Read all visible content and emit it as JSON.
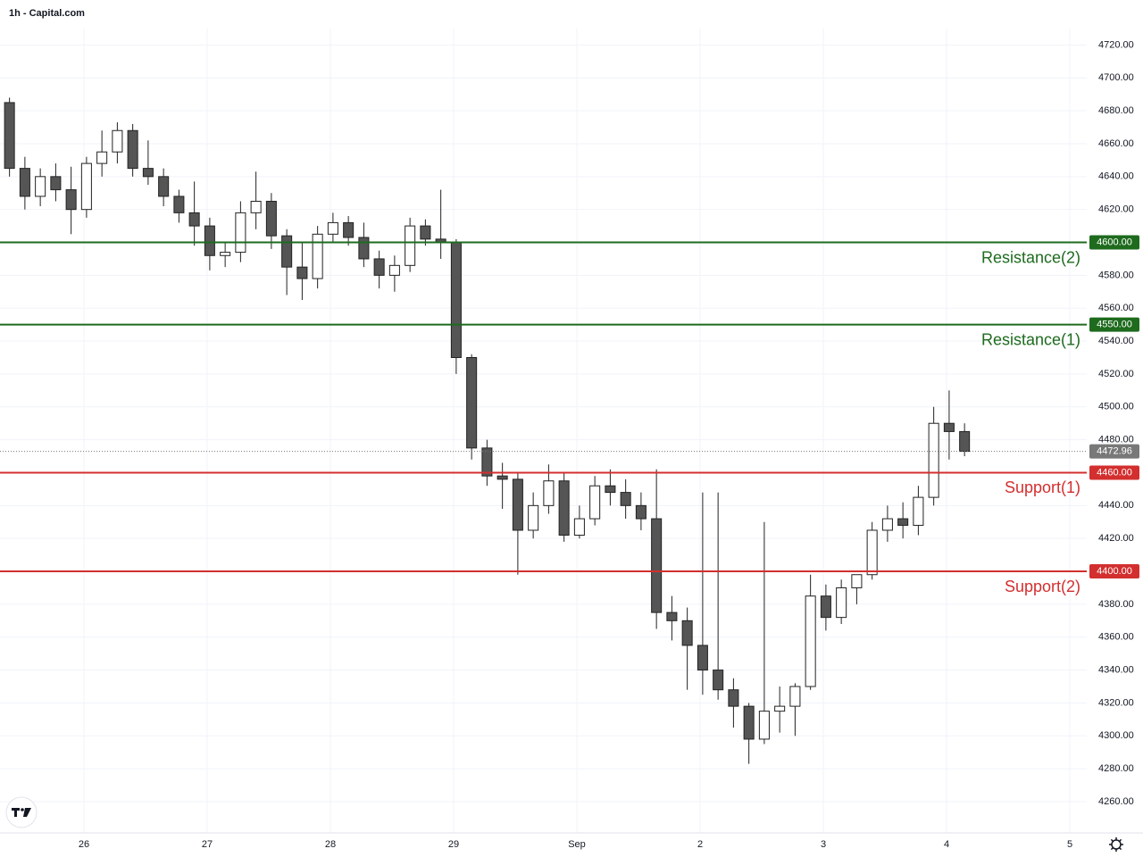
{
  "chart_data": {
    "type": "candlestick",
    "title": "1h - Capital.com",
    "xlim": [
      -0.35,
      211.3
    ],
    "ylim": [
      4241,
      4730
    ],
    "grid": true,
    "up_color": "#ffffff",
    "down_color": "#555555",
    "wick_color": "#222222",
    "xticks": [
      {
        "value": 16,
        "label": "26"
      },
      {
        "value": 40,
        "label": "27"
      },
      {
        "value": 64,
        "label": "28"
      },
      {
        "value": 88,
        "label": "29"
      },
      {
        "value": 112,
        "label": "Sep"
      },
      {
        "value": 136,
        "label": "2"
      },
      {
        "value": 160,
        "label": "3"
      },
      {
        "value": 184,
        "label": "4"
      },
      {
        "value": 208,
        "label": "5"
      }
    ],
    "yticks": [
      {
        "value": 4260,
        "label": "4260.00"
      },
      {
        "value": 4280,
        "label": "4280.00"
      },
      {
        "value": 4300,
        "label": "4300.00"
      },
      {
        "value": 4320,
        "label": "4320.00"
      },
      {
        "value": 4340,
        "label": "4340.00"
      },
      {
        "value": 4360,
        "label": "4360.00"
      },
      {
        "value": 4380,
        "label": "4380.00"
      },
      {
        "value": 4420,
        "label": "4420.00"
      },
      {
        "value": 4440,
        "label": "4440.00"
      },
      {
        "value": 4480,
        "label": "4480.00"
      },
      {
        "value": 4500,
        "label": "4500.00"
      },
      {
        "value": 4520,
        "label": "4520.00"
      },
      {
        "value": 4540,
        "label": "4540.00"
      },
      {
        "value": 4560,
        "label": "4560.00"
      },
      {
        "value": 4580,
        "label": "4580.00"
      },
      {
        "value": 4620,
        "label": "4620.00"
      },
      {
        "value": 4640,
        "label": "4640.00"
      },
      {
        "value": 4660,
        "label": "4660.00"
      },
      {
        "value": 4680,
        "label": "4680.00"
      },
      {
        "value": 4700,
        "label": "4700.00"
      },
      {
        "value": 4720,
        "label": "4720.00"
      }
    ],
    "levels": [
      {
        "name": "Resistance(2)",
        "value": 4600,
        "label": "4600.00",
        "color": "#1e6b1e"
      },
      {
        "name": "Resistance(1)",
        "value": 4550,
        "label": "4550.00",
        "color": "#1e6b1e"
      },
      {
        "name": "Support(1)",
        "value": 4460,
        "label": "4460.00",
        "color": "#d32f2f"
      },
      {
        "name": "Support(2)",
        "value": 4400,
        "label": "4400.00",
        "color": "#d32f2f"
      }
    ],
    "last_price": {
      "value": 4472.96,
      "label": "4472.96",
      "color": "#787878"
    },
    "candles": [
      {
        "x": 1.5,
        "o": 4685,
        "h": 4688,
        "l": 4640,
        "c": 4645
      },
      {
        "x": 4.5,
        "o": 4645,
        "h": 4652,
        "l": 4620,
        "c": 4628
      },
      {
        "x": 7.5,
        "o": 4628,
        "h": 4645,
        "l": 4622,
        "c": 4640
      },
      {
        "x": 10.5,
        "o": 4640,
        "h": 4648,
        "l": 4625,
        "c": 4632
      },
      {
        "x": 13.5,
        "o": 4632,
        "h": 4646,
        "l": 4605,
        "c": 4620
      },
      {
        "x": 16.5,
        "o": 4620,
        "h": 4652,
        "l": 4615,
        "c": 4648
      },
      {
        "x": 19.5,
        "o": 4648,
        "h": 4668,
        "l": 4640,
        "c": 4655
      },
      {
        "x": 22.5,
        "o": 4655,
        "h": 4673,
        "l": 4648,
        "c": 4668
      },
      {
        "x": 25.5,
        "o": 4668,
        "h": 4672,
        "l": 4640,
        "c": 4645
      },
      {
        "x": 28.5,
        "o": 4645,
        "h": 4662,
        "l": 4635,
        "c": 4640
      },
      {
        "x": 31.5,
        "o": 4640,
        "h": 4645,
        "l": 4622,
        "c": 4628
      },
      {
        "x": 34.5,
        "o": 4628,
        "h": 4632,
        "l": 4612,
        "c": 4618
      },
      {
        "x": 37.5,
        "o": 4618,
        "h": 4637,
        "l": 4598,
        "c": 4610
      },
      {
        "x": 40.5,
        "o": 4610,
        "h": 4615,
        "l": 4583,
        "c": 4592
      },
      {
        "x": 43.5,
        "o": 4592,
        "h": 4600,
        "l": 4585,
        "c": 4594
      },
      {
        "x": 46.5,
        "o": 4594,
        "h": 4625,
        "l": 4588,
        "c": 4618
      },
      {
        "x": 49.5,
        "o": 4618,
        "h": 4643,
        "l": 4608,
        "c": 4625
      },
      {
        "x": 52.5,
        "o": 4625,
        "h": 4630,
        "l": 4596,
        "c": 4604
      },
      {
        "x": 55.5,
        "o": 4604,
        "h": 4608,
        "l": 4568,
        "c": 4585
      },
      {
        "x": 58.5,
        "o": 4585,
        "h": 4600,
        "l": 4565,
        "c": 4578
      },
      {
        "x": 61.5,
        "o": 4578,
        "h": 4610,
        "l": 4572,
        "c": 4605
      },
      {
        "x": 64.5,
        "o": 4605,
        "h": 4618,
        "l": 4600,
        "c": 4612
      },
      {
        "x": 67.5,
        "o": 4612,
        "h": 4616,
        "l": 4598,
        "c": 4603
      },
      {
        "x": 70.5,
        "o": 4603,
        "h": 4612,
        "l": 4585,
        "c": 4590
      },
      {
        "x": 73.5,
        "o": 4590,
        "h": 4595,
        "l": 4572,
        "c": 4580
      },
      {
        "x": 76.5,
        "o": 4580,
        "h": 4592,
        "l": 4570,
        "c": 4586
      },
      {
        "x": 79.5,
        "o": 4586,
        "h": 4615,
        "l": 4582,
        "c": 4610
      },
      {
        "x": 82.5,
        "o": 4610,
        "h": 4614,
        "l": 4598,
        "c": 4602
      },
      {
        "x": 85.5,
        "o": 4602,
        "h": 4632,
        "l": 4590,
        "c": 4600
      },
      {
        "x": 88.5,
        "o": 4600,
        "h": 4602,
        "l": 4520,
        "c": 4530
      },
      {
        "x": 91.5,
        "o": 4530,
        "h": 4532,
        "l": 4468,
        "c": 4475
      },
      {
        "x": 94.5,
        "o": 4475,
        "h": 4480,
        "l": 4452,
        "c": 4458
      },
      {
        "x": 97.5,
        "o": 4458,
        "h": 4466,
        "l": 4438,
        "c": 4456
      },
      {
        "x": 100.5,
        "o": 4456,
        "h": 4460,
        "l": 4398,
        "c": 4425
      },
      {
        "x": 103.5,
        "o": 4425,
        "h": 4448,
        "l": 4420,
        "c": 4440
      },
      {
        "x": 106.5,
        "o": 4440,
        "h": 4465,
        "l": 4435,
        "c": 4455
      },
      {
        "x": 109.5,
        "o": 4455,
        "h": 4460,
        "l": 4418,
        "c": 4422
      },
      {
        "x": 112.5,
        "o": 4422,
        "h": 4440,
        "l": 4420,
        "c": 4432
      },
      {
        "x": 115.5,
        "o": 4432,
        "h": 4458,
        "l": 4428,
        "c": 4452
      },
      {
        "x": 118.5,
        "o": 4452,
        "h": 4462,
        "l": 4440,
        "c": 4448
      },
      {
        "x": 121.5,
        "o": 4448,
        "h": 4456,
        "l": 4432,
        "c": 4440
      },
      {
        "x": 124.5,
        "o": 4440,
        "h": 4448,
        "l": 4425,
        "c": 4432
      },
      {
        "x": 127.5,
        "o": 4432,
        "h": 4462,
        "l": 4365,
        "c": 4375
      },
      {
        "x": 130.5,
        "o": 4375,
        "h": 4385,
        "l": 4358,
        "c": 4370
      },
      {
        "x": 133.5,
        "o": 4370,
        "h": 4378,
        "l": 4328,
        "c": 4355
      },
      {
        "x": 136.5,
        "o": 4355,
        "h": 4448,
        "l": 4325,
        "c": 4340
      },
      {
        "x": 139.5,
        "o": 4340,
        "h": 4448,
        "l": 4322,
        "c": 4328
      },
      {
        "x": 142.5,
        "o": 4328,
        "h": 4335,
        "l": 4305,
        "c": 4318
      },
      {
        "x": 145.5,
        "o": 4318,
        "h": 4320,
        "l": 4283,
        "c": 4298
      },
      {
        "x": 148.5,
        "o": 4298,
        "h": 4430,
        "l": 4295,
        "c": 4315
      },
      {
        "x": 151.5,
        "o": 4315,
        "h": 4330,
        "l": 4302,
        "c": 4318
      },
      {
        "x": 154.5,
        "o": 4318,
        "h": 4332,
        "l": 4300,
        "c": 4330
      },
      {
        "x": 157.5,
        "o": 4330,
        "h": 4398,
        "l": 4328,
        "c": 4385
      },
      {
        "x": 160.5,
        "o": 4385,
        "h": 4392,
        "l": 4364,
        "c": 4372
      },
      {
        "x": 163.5,
        "o": 4372,
        "h": 4395,
        "l": 4368,
        "c": 4390
      },
      {
        "x": 166.5,
        "o": 4390,
        "h": 4398,
        "l": 4380,
        "c": 4398
      },
      {
        "x": 169.5,
        "o": 4398,
        "h": 4430,
        "l": 4395,
        "c": 4425
      },
      {
        "x": 172.5,
        "o": 4425,
        "h": 4440,
        "l": 4418,
        "c": 4432
      },
      {
        "x": 175.5,
        "o": 4432,
        "h": 4442,
        "l": 4420,
        "c": 4428
      },
      {
        "x": 178.5,
        "o": 4428,
        "h": 4452,
        "l": 4422,
        "c": 4445
      },
      {
        "x": 181.5,
        "o": 4445,
        "h": 4500,
        "l": 4440,
        "c": 4490
      },
      {
        "x": 184.5,
        "o": 4490,
        "h": 4510,
        "l": 4468,
        "c": 4485
      },
      {
        "x": 187.5,
        "o": 4485,
        "h": 4490,
        "l": 4470,
        "c": 4472.96
      }
    ]
  }
}
